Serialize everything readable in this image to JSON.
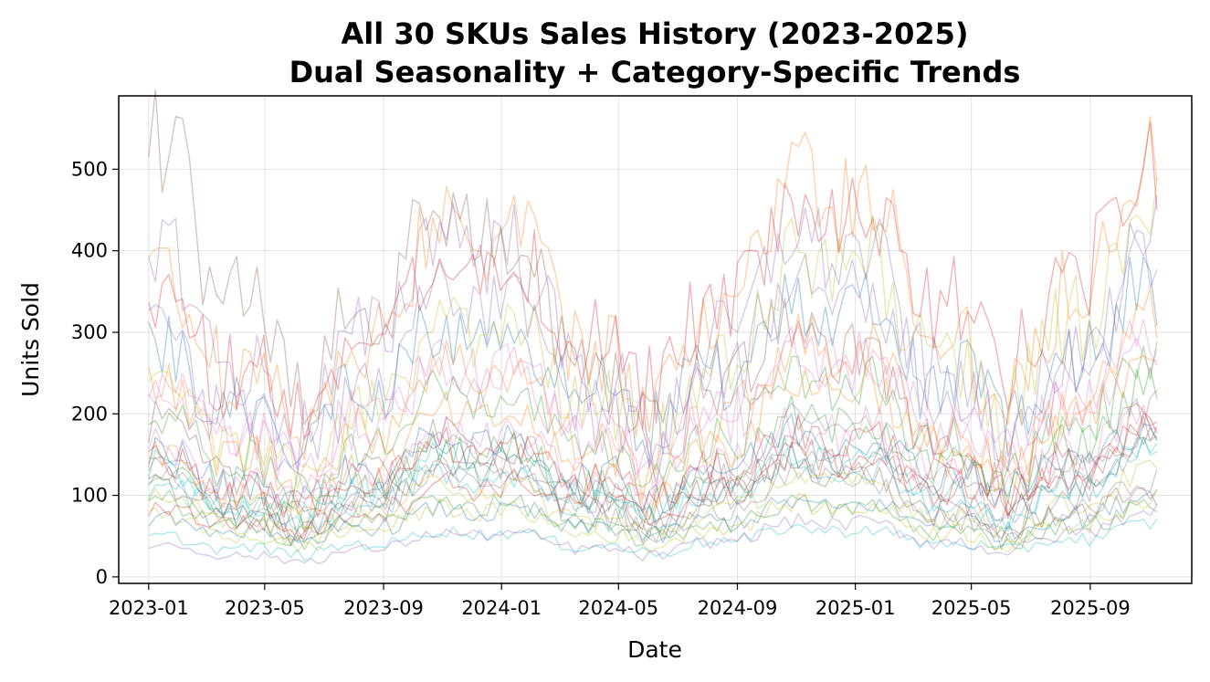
{
  "chart_data": {
    "type": "line",
    "title_lines": [
      "All 30 SKUs Sales History (2023-2025)",
      "Dual Seasonality + Category-Specific Trends"
    ],
    "xlabel": "Date",
    "ylabel": "Units Sold",
    "x_ticks": [
      "2023-01",
      "2023-05",
      "2023-09",
      "2024-01",
      "2024-05",
      "2024-09",
      "2025-01",
      "2025-05",
      "2025-09"
    ],
    "y_ticks": [
      0,
      100,
      200,
      300,
      400,
      500
    ],
    "xlim": [
      "2022-12-01",
      "2025-12-15"
    ],
    "ylim": [
      -8,
      590
    ],
    "grid": true,
    "x_start": "2023-01-01",
    "x_end": "2025-11-10",
    "frequency": "weekly",
    "series_count": 30,
    "line_alpha": 0.35,
    "colors": [
      "#1f77b4",
      "#ff7f0e",
      "#2ca02c",
      "#d62728",
      "#9467bd",
      "#8c564b",
      "#e377c2",
      "#7f7f7f",
      "#bcbd22",
      "#17becf"
    ],
    "series": [
      {
        "start": 230,
        "end": 285
      },
      {
        "start": 300,
        "end": 390
      },
      {
        "start": 160,
        "end": 200
      },
      {
        "start": 280,
        "end": 400
      },
      {
        "start": 235,
        "end": 290
      },
      {
        "start": 435,
        "end": 125
      },
      {
        "start": 190,
        "end": 230
      },
      {
        "start": 110,
        "end": 150
      },
      {
        "start": 180,
        "end": 355
      },
      {
        "start": 90,
        "end": 120
      },
      {
        "start": 60,
        "end": 80
      },
      {
        "start": 120,
        "end": 210
      },
      {
        "start": 100,
        "end": 175
      },
      {
        "start": 70,
        "end": 140
      },
      {
        "start": 320,
        "end": 300
      },
      {
        "start": 150,
        "end": 80
      },
      {
        "start": 130,
        "end": 160
      },
      {
        "start": 95,
        "end": 110
      },
      {
        "start": 80,
        "end": 95
      },
      {
        "start": 40,
        "end": 50
      },
      {
        "start": 130,
        "end": 150
      },
      {
        "start": 180,
        "end": 230
      },
      {
        "start": 75,
        "end": 65
      },
      {
        "start": 120,
        "end": 150
      },
      {
        "start": 30,
        "end": 60
      },
      {
        "start": 90,
        "end": 130
      },
      {
        "start": 200,
        "end": 220
      },
      {
        "start": 100,
        "end": 85
      },
      {
        "start": 60,
        "end": 70
      },
      {
        "start": 110,
        "end": 120
      }
    ]
  }
}
